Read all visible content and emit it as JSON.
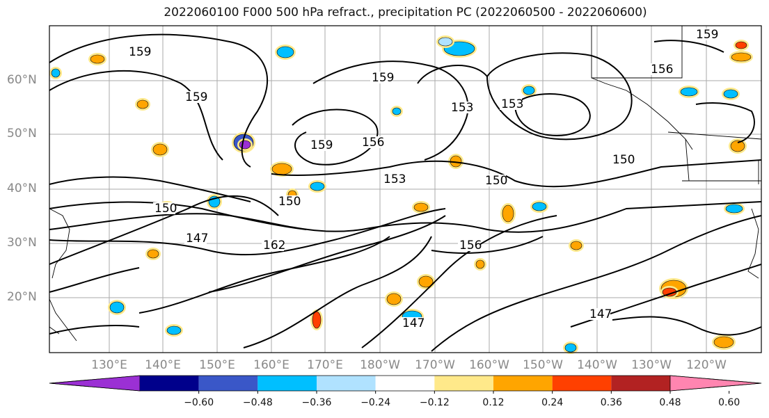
{
  "title": "2022060100 F000 500 hPa refract., precipitation PC (2022060500 - 2022060600)",
  "lat_labels": [
    "60°N",
    "50°N",
    "40°N",
    "30°N",
    "20°N"
  ],
  "lon_labels": [
    "130°E",
    "140°E",
    "150°E",
    "160°E",
    "170°E",
    "180°W",
    "170°W",
    "160°W",
    "150°W",
    "140°W",
    "130°W",
    "120°W"
  ],
  "contour_labels": [
    "159",
    "159",
    "159",
    "159",
    "156",
    "156",
    "153",
    "153",
    "150",
    "150",
    "150",
    "147",
    "147",
    "147",
    "162",
    "156",
    "153",
    "150",
    "159"
  ],
  "colorbar": {
    "ticks": [
      "−0.60",
      "−0.48",
      "−0.36",
      "−0.24",
      "−0.12",
      "0.12",
      "0.24",
      "0.36",
      "0.48",
      "0.60"
    ],
    "colors": [
      "#9b30d4",
      "#00008b",
      "#3a57c8",
      "#00bfff",
      "#b0e2ff",
      "#ffffff",
      "#ffe98a",
      "#ffa500",
      "#ff4000",
      "#b22222",
      "#ff85b0"
    ]
  },
  "chart_data": {
    "type": "map",
    "title": "2022060100 F000 500 hPa refract., precipitation PC (2022060500 - 2022060600)",
    "contour_levels": [
      147,
      150,
      153,
      156,
      159,
      162
    ],
    "fill_levels": [
      -0.6,
      -0.48,
      -0.36,
      -0.24,
      -0.12,
      0.12,
      0.24,
      0.36,
      0.48,
      0.6
    ],
    "lat_range": [
      10,
      70
    ],
    "lon_range": [
      "125°E",
      "115°W"
    ],
    "grid": true
  }
}
